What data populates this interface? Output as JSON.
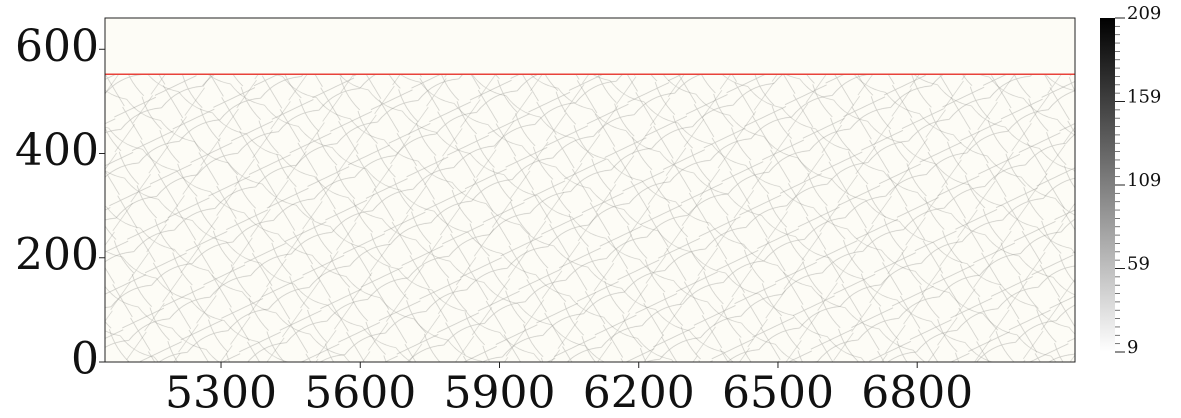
{
  "chart_data": {
    "type": "heatmap",
    "xlim": [
      5050,
      7140
    ],
    "xticks": [
      5300,
      5600,
      5900,
      6200,
      6500,
      6800
    ],
    "ylim": [
      0,
      660
    ],
    "yticks": [
      0,
      200,
      400,
      600
    ],
    "background": "#fdfcf6",
    "hline": {
      "value": 552,
      "color": "#e8423a"
    },
    "colorbar": {
      "lim": [
        9,
        209
      ],
      "ticks": [
        9,
        59,
        109,
        159,
        209
      ],
      "colors": [
        "#ffffff",
        "#000000"
      ]
    }
  }
}
